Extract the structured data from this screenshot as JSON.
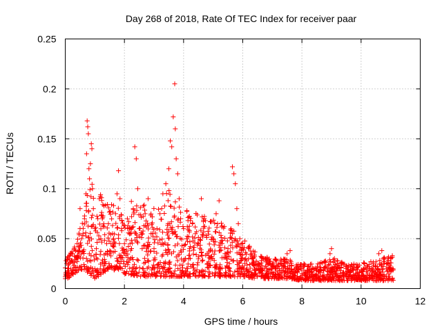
{
  "chart_data": {
    "type": "scatter",
    "title": "Day 268 of 2018, Rate Of TEC Index for receiver paar",
    "xlabel": "GPS time / hours",
    "ylabel": "ROTI / TECUs",
    "xlim": [
      0,
      12
    ],
    "ylim": [
      0,
      0.25
    ],
    "xticks": [
      0,
      2,
      4,
      6,
      8,
      10,
      12
    ],
    "yticks": [
      0,
      0.05,
      0.1,
      0.15,
      0.2,
      0.25
    ],
    "xtick_labels": [
      "0",
      "2",
      "4",
      "6",
      "8",
      "10",
      "12"
    ],
    "ytick_labels": [
      "0",
      "0.05",
      "0.1",
      "0.15",
      "0.2",
      "0.25"
    ],
    "grid": true,
    "marker": "+",
    "color": "#ff0000",
    "series": [
      {
        "name": "ROTI",
        "points": [
          [
            0.0,
            0.012
          ],
          [
            0.05,
            0.025
          ],
          [
            0.1,
            0.02
          ],
          [
            0.15,
            0.03
          ],
          [
            0.2,
            0.028
          ],
          [
            0.25,
            0.035
          ],
          [
            0.3,
            0.04
          ],
          [
            0.35,
            0.038
          ],
          [
            0.4,
            0.045
          ],
          [
            0.45,
            0.042
          ],
          [
            0.5,
            0.06
          ],
          [
            0.5,
            0.08
          ],
          [
            0.55,
            0.05
          ],
          [
            0.6,
            0.055
          ],
          [
            0.65,
            0.07
          ],
          [
            0.7,
            0.095
          ],
          [
            0.72,
            0.135
          ],
          [
            0.74,
            0.168
          ],
          [
            0.76,
            0.162
          ],
          [
            0.78,
            0.155
          ],
          [
            0.8,
            0.12
          ],
          [
            0.82,
            0.11
          ],
          [
            0.85,
            0.125
          ],
          [
            0.88,
            0.145
          ],
          [
            0.9,
            0.14
          ],
          [
            0.92,
            0.1
          ],
          [
            0.95,
            0.08
          ],
          [
            1.0,
            0.06
          ],
          [
            1.05,
            0.04
          ],
          [
            1.1,
            0.07
          ],
          [
            1.15,
            0.09
          ],
          [
            1.2,
            0.05
          ],
          [
            1.3,
            0.065
          ],
          [
            1.4,
            0.045
          ],
          [
            1.5,
            0.035
          ],
          [
            1.6,
            0.055
          ],
          [
            1.7,
            0.075
          ],
          [
            1.75,
            0.095
          ],
          [
            1.8,
            0.118
          ],
          [
            1.85,
            0.09
          ],
          [
            1.9,
            0.06
          ],
          [
            2.0,
            0.045
          ],
          [
            2.1,
            0.07
          ],
          [
            2.2,
            0.055
          ],
          [
            2.3,
            0.08
          ],
          [
            2.35,
            0.142
          ],
          [
            2.4,
            0.13
          ],
          [
            2.45,
            0.1
          ],
          [
            2.5,
            0.06
          ],
          [
            2.6,
            0.04
          ],
          [
            2.7,
            0.075
          ],
          [
            2.8,
            0.09
          ],
          [
            2.9,
            0.055
          ],
          [
            3.0,
            0.04
          ],
          [
            3.1,
            0.06
          ],
          [
            3.2,
            0.075
          ],
          [
            3.3,
            0.095
          ],
          [
            3.4,
            0.105
          ],
          [
            3.5,
            0.12
          ],
          [
            3.55,
            0.148
          ],
          [
            3.6,
            0.142
          ],
          [
            3.65,
            0.172
          ],
          [
            3.7,
            0.205
          ],
          [
            3.72,
            0.16
          ],
          [
            3.75,
            0.13
          ],
          [
            3.8,
            0.115
          ],
          [
            3.85,
            0.09
          ],
          [
            3.9,
            0.07
          ],
          [
            4.0,
            0.06
          ],
          [
            4.1,
            0.05
          ],
          [
            4.2,
            0.04
          ],
          [
            4.3,
            0.065
          ],
          [
            4.4,
            0.055
          ],
          [
            4.5,
            0.045
          ],
          [
            4.6,
            0.09
          ],
          [
            4.7,
            0.07
          ],
          [
            4.8,
            0.035
          ],
          [
            4.9,
            0.03
          ],
          [
            5.0,
            0.05
          ],
          [
            5.1,
            0.075
          ],
          [
            5.2,
            0.088
          ],
          [
            5.3,
            0.045
          ],
          [
            5.4,
            0.035
          ],
          [
            5.5,
            0.04
          ],
          [
            5.6,
            0.06
          ],
          [
            5.65,
            0.122
          ],
          [
            5.7,
            0.115
          ],
          [
            5.75,
            0.105
          ],
          [
            5.8,
            0.08
          ],
          [
            5.85,
            0.065
          ],
          [
            5.9,
            0.05
          ],
          [
            6.0,
            0.045
          ],
          [
            6.1,
            0.03
          ],
          [
            6.2,
            0.04
          ],
          [
            6.3,
            0.035
          ],
          [
            6.5,
            0.025
          ],
          [
            6.7,
            0.03
          ],
          [
            6.9,
            0.025
          ],
          [
            7.1,
            0.02
          ],
          [
            7.3,
            0.025
          ],
          [
            7.5,
            0.035
          ],
          [
            7.6,
            0.038
          ],
          [
            7.8,
            0.02
          ],
          [
            8.0,
            0.015
          ],
          [
            8.2,
            0.018
          ],
          [
            8.4,
            0.02
          ],
          [
            8.6,
            0.025
          ],
          [
            8.8,
            0.022
          ],
          [
            8.95,
            0.035
          ],
          [
            9.0,
            0.04
          ],
          [
            9.1,
            0.03
          ],
          [
            9.3,
            0.018
          ],
          [
            9.5,
            0.015
          ],
          [
            9.7,
            0.02
          ],
          [
            9.9,
            0.022
          ],
          [
            10.1,
            0.02
          ],
          [
            10.3,
            0.018
          ],
          [
            10.5,
            0.022
          ],
          [
            10.6,
            0.035
          ],
          [
            10.7,
            0.038
          ],
          [
            10.8,
            0.03
          ],
          [
            10.9,
            0.025
          ],
          [
            11.0,
            0.03
          ],
          [
            11.05,
            0.02
          ]
        ],
        "envelope": [
          [
            0.0,
            0.008,
            0.028
          ],
          [
            0.3,
            0.015,
            0.045
          ],
          [
            0.6,
            0.02,
            0.07
          ],
          [
            0.8,
            0.015,
            0.11
          ],
          [
            1.0,
            0.01,
            0.1
          ],
          [
            1.5,
            0.02,
            0.085
          ],
          [
            2.0,
            0.015,
            0.085
          ],
          [
            2.5,
            0.012,
            0.09
          ],
          [
            3.0,
            0.012,
            0.085
          ],
          [
            3.5,
            0.012,
            0.1
          ],
          [
            4.0,
            0.012,
            0.08
          ],
          [
            4.5,
            0.012,
            0.075
          ],
          [
            5.0,
            0.012,
            0.07
          ],
          [
            5.5,
            0.012,
            0.065
          ],
          [
            6.0,
            0.012,
            0.05
          ],
          [
            6.5,
            0.01,
            0.035
          ],
          [
            7.0,
            0.01,
            0.03
          ],
          [
            7.5,
            0.01,
            0.03
          ],
          [
            8.0,
            0.008,
            0.025
          ],
          [
            8.5,
            0.008,
            0.025
          ],
          [
            9.0,
            0.008,
            0.03
          ],
          [
            9.5,
            0.008,
            0.025
          ],
          [
            10.0,
            0.008,
            0.025
          ],
          [
            10.5,
            0.008,
            0.03
          ],
          [
            11.1,
            0.008,
            0.035
          ]
        ]
      }
    ]
  }
}
